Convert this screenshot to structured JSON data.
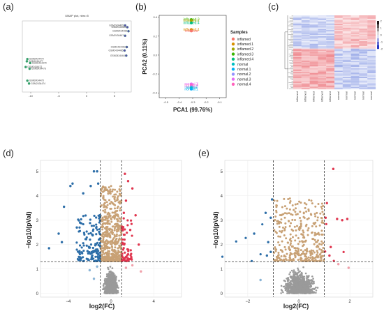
{
  "panels": {
    "a": {
      "label": "(a)"
    },
    "b": {
      "label": "(b)"
    },
    "c": {
      "label": "(c)"
    },
    "d": {
      "label": "(d)"
    },
    "e": {
      "label": "(e)"
    }
  },
  "chart_data": [
    {
      "id": "umap",
      "type": "scatter",
      "title": "UMAP plot, nbrs=5",
      "xticks": [
        -10,
        -5,
        0,
        5
      ],
      "yticks": [],
      "xlim": [
        -11.5,
        8
      ],
      "ylim": [
        -6,
        6.5
      ],
      "points": [
        {
          "label": "GSM2434470",
          "x": -10.6,
          "y": -0.2,
          "group": "normal"
        },
        {
          "label": "GSM2434477",
          "x": -10.7,
          "y": -0.6,
          "group": "normal"
        },
        {
          "label": "GSM2434479",
          "x": -10.1,
          "y": -0.9,
          "group": "normal"
        },
        {
          "label": "GSM2434472",
          "x": -10.9,
          "y": -1.6,
          "group": "normal"
        },
        {
          "label": "GSM2434476",
          "x": -10.2,
          "y": -1.9,
          "group": "normal"
        },
        {
          "label": "GSM2434478",
          "x": -10.6,
          "y": -4.0,
          "group": "normal"
        },
        {
          "label": "GSM2434474",
          "x": -10.3,
          "y": -4.5,
          "group": "normal"
        },
        {
          "label": "GSM2434465",
          "x": 6.9,
          "y": 5.7,
          "group": "inflamed"
        },
        {
          "label": "GSM2434469",
          "x": 7.3,
          "y": 5.4,
          "group": "inflamed"
        },
        {
          "label": "GSM2434468",
          "x": 7.5,
          "y": 4.7,
          "group": "inflamed"
        },
        {
          "label": "GSM2434467",
          "x": 6.9,
          "y": 3.9,
          "group": "inflamed"
        },
        {
          "label": "GSM2434463",
          "x": 7.2,
          "y": 1.9,
          "group": "inflamed"
        },
        {
          "label": "GSM2434466",
          "x": 6.8,
          "y": 1.3,
          "group": "inflamed"
        },
        {
          "label": "GSM2434464",
          "x": 7.1,
          "y": 0.4,
          "group": "inflamed"
        }
      ]
    },
    {
      "id": "pca",
      "type": "scatter",
      "xlabel": "PCA1 (99.76%)",
      "ylabel": "PCA2 (0.11%)",
      "xticks": [
        -0.5,
        -0.4,
        -0.3,
        -0.2,
        -0.1
      ],
      "yticks": [
        -0.4,
        -0.2,
        0.0,
        0.2,
        0.4
      ],
      "xlim": [
        -0.55,
        -0.05
      ],
      "ylim": [
        -0.45,
        0.42
      ],
      "legend_title": "Samples",
      "groups": [
        {
          "name": "inflamed",
          "color": "#F8766D"
        },
        {
          "name": "inflamed.1",
          "color": "#D89000"
        },
        {
          "name": "inflamed.2",
          "color": "#A3A500"
        },
        {
          "name": "inflamed.3",
          "color": "#39B600"
        },
        {
          "name": "inflamed.4",
          "color": "#00BF7D"
        },
        {
          "name": "normal",
          "color": "#00BFC4"
        },
        {
          "name": "normal.1",
          "color": "#00B0F6"
        },
        {
          "name": "normal.2",
          "color": "#9590FF"
        },
        {
          "name": "normal.3",
          "color": "#E76BF3"
        },
        {
          "name": "normal.4",
          "color": "#FF62BC"
        }
      ],
      "points": [
        {
          "label": "inflamed.3",
          "x": -0.31,
          "y": 0.375,
          "group": "inflamed.3"
        },
        {
          "label": "inflamed.2",
          "x": -0.31,
          "y": 0.365,
          "group": "inflamed.2"
        },
        {
          "label": "inflamed.4",
          "x": -0.31,
          "y": 0.34,
          "group": "inflamed.4"
        },
        {
          "label": "inflamed.1",
          "x": -0.31,
          "y": 0.27,
          "group": "inflamed.1"
        },
        {
          "label": "inflamed",
          "x": -0.31,
          "y": 0.255,
          "group": "inflamed"
        },
        {
          "label": "normal.3",
          "x": -0.31,
          "y": -0.305,
          "group": "normal.3"
        },
        {
          "label": "normal.4",
          "x": -0.31,
          "y": -0.32,
          "group": "normal.4"
        },
        {
          "label": "normal.2",
          "x": -0.31,
          "y": -0.335,
          "group": "normal.2"
        },
        {
          "label": "normal",
          "x": -0.31,
          "y": -0.345,
          "group": "normal"
        },
        {
          "label": "normal.1",
          "x": -0.31,
          "y": -0.36,
          "group": "normal.1"
        }
      ]
    },
    {
      "id": "heatmap",
      "type": "heatmap",
      "scale_ticks": [
        "2",
        "1",
        "0",
        "-1",
        "-2"
      ],
      "columns": [
        "inflamed",
        "inflamed",
        "inflamed",
        "inflamed",
        "inflamed",
        "normal",
        "normal",
        "normal",
        "normal",
        "normal"
      ],
      "colors": {
        "high": "#e41a1c",
        "mid": "#ffffff",
        "low": "#1f3fbf"
      }
    },
    {
      "id": "volcano_d",
      "type": "scatter",
      "xlabel": "log2(FC)",
      "ylabel": "−log10(pVal)",
      "xticks": [
        -4,
        0,
        4
      ],
      "yticks": [
        0,
        1,
        2,
        3,
        4,
        5
      ],
      "xlim": [
        -6.6,
        6.6
      ],
      "ylim": [
        -0.15,
        5.45
      ],
      "threshold_x": [
        -1,
        1
      ],
      "threshold_y": 1.3,
      "colors": {
        "up": "#e0364f",
        "down": "#2d6ea8",
        "sig": "#c8a175",
        "ns": "#9a9a9a",
        "up_light": "#f0a0aa",
        "down_light": "#8ab4d6"
      },
      "highlight_points": [
        {
          "x": -5.8,
          "y": 1.85,
          "c": "down"
        },
        {
          "x": -4.9,
          "y": 2.45,
          "c": "down"
        },
        {
          "x": -4.6,
          "y": 2.1,
          "c": "down"
        },
        {
          "x": -4.4,
          "y": 3.55,
          "c": "down"
        },
        {
          "x": -3.8,
          "y": 4.4,
          "c": "down"
        },
        {
          "x": -3.6,
          "y": 4.5,
          "c": "down"
        },
        {
          "x": -2.6,
          "y": 4.1,
          "c": "down"
        },
        {
          "x": -1.6,
          "y": 5.0,
          "c": "down"
        },
        {
          "x": -1.3,
          "y": 5.0,
          "c": "down"
        },
        {
          "x": -1.2,
          "y": 4.5,
          "c": "down"
        },
        {
          "x": -3.2,
          "y": 2.7,
          "c": "down"
        },
        {
          "x": -2.9,
          "y": 2.9,
          "c": "down"
        },
        {
          "x": -1.9,
          "y": 4.4,
          "c": "down"
        },
        {
          "x": 1.3,
          "y": 4.9,
          "c": "up"
        },
        {
          "x": 1.6,
          "y": 4.6,
          "c": "up"
        },
        {
          "x": 2.0,
          "y": 4.3,
          "c": "up"
        },
        {
          "x": 2.3,
          "y": 3.2,
          "c": "up"
        },
        {
          "x": 2.6,
          "y": 2.0,
          "c": "up"
        },
        {
          "x": 1.8,
          "y": 2.6,
          "c": "up"
        },
        {
          "x": 1.4,
          "y": 3.8,
          "c": "up"
        },
        {
          "x": 1.2,
          "y": 3.3,
          "c": "up"
        },
        {
          "x": 1.6,
          "y": 1.6,
          "c": "up"
        },
        {
          "x": 1.9,
          "y": 1.45,
          "c": "up"
        },
        {
          "x": 2.0,
          "y": 1.15,
          "c": "up_light"
        },
        {
          "x": 2.8,
          "y": 0.9,
          "c": "up_light"
        },
        {
          "x": 1.4,
          "y": 1.05,
          "c": "up_light"
        },
        {
          "x": -1.3,
          "y": 1.1,
          "c": "down_light"
        },
        {
          "x": -1.6,
          "y": 0.6,
          "c": "down_light"
        },
        {
          "x": -2.0,
          "y": 0.95,
          "c": "down_light"
        }
      ],
      "cloud": {
        "seed": 7,
        "down_n": 140,
        "up_n": 60,
        "sig_n": 520,
        "ns_n": 900,
        "sig_ymax": 4.4
      }
    },
    {
      "id": "volcano_e",
      "type": "scatter",
      "xlabel": "log2(FC)",
      "ylabel": "−log10(pVal)",
      "xticks": [
        -2,
        0,
        2
      ],
      "yticks": [
        0,
        1,
        2,
        3,
        4,
        5
      ],
      "xlim": [
        -2.9,
        2.9
      ],
      "ylim": [
        -0.15,
        5.45
      ],
      "threshold_x": [
        -1,
        1
      ],
      "threshold_y": 1.3,
      "colors": {
        "up": "#e0364f",
        "down": "#2d6ea8",
        "sig": "#c8a175",
        "ns": "#9a9a9a",
        "up_light": "#f0a0aa",
        "down_light": "#8ab4d6"
      },
      "highlight_points": [
        {
          "x": -1.05,
          "y": 3.85,
          "c": "down"
        },
        {
          "x": -1.1,
          "y": 3.1,
          "c": "down"
        },
        {
          "x": -1.3,
          "y": 3.3,
          "c": "down"
        },
        {
          "x": -1.75,
          "y": 2.45,
          "c": "down"
        },
        {
          "x": -1.2,
          "y": 2.1,
          "c": "down"
        },
        {
          "x": -1.1,
          "y": 1.7,
          "c": "down"
        },
        {
          "x": -1.25,
          "y": 1.55,
          "c": "down"
        },
        {
          "x": -1.5,
          "y": 0.55,
          "c": "down_light"
        },
        {
          "x": 1.35,
          "y": 5.1,
          "c": "up"
        },
        {
          "x": 1.1,
          "y": 3.7,
          "c": "up"
        },
        {
          "x": 1.5,
          "y": 3.05,
          "c": "up"
        },
        {
          "x": 1.7,
          "y": 3.0,
          "c": "up"
        },
        {
          "x": 1.9,
          "y": 3.05,
          "c": "up"
        },
        {
          "x": 1.05,
          "y": 3.1,
          "c": "up"
        },
        {
          "x": 1.25,
          "y": 1.9,
          "c": "up"
        },
        {
          "x": 1.2,
          "y": 1.55,
          "c": "up"
        },
        {
          "x": 1.95,
          "y": 1.05,
          "c": "up_light"
        },
        {
          "x": 1.55,
          "y": 1.2,
          "c": "up_light"
        }
      ],
      "cloud": {
        "seed": 13,
        "down_n": 6,
        "up_n": 4,
        "sig_n": 360,
        "ns_n": 900,
        "sig_ymax": 3.9
      }
    }
  ]
}
